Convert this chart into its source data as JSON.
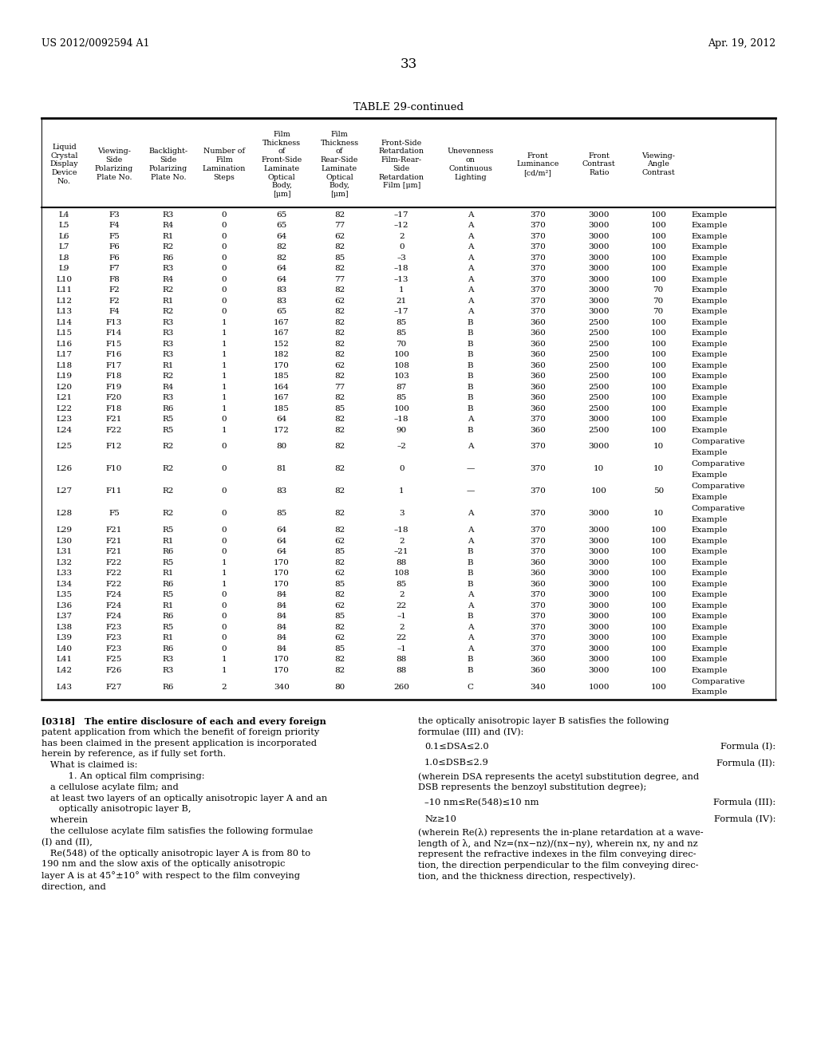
{
  "header_left": "US 2012/0092594 A1",
  "header_right": "Apr. 19, 2012",
  "page_number": "33",
  "table_title": "TABLE 29-continued",
  "rows": [
    [
      "L4",
      "F3",
      "R3",
      "0",
      "65",
      "82",
      "–17",
      "A",
      "370",
      "3000",
      "100",
      "Example"
    ],
    [
      "L5",
      "F4",
      "R4",
      "0",
      "65",
      "77",
      "–12",
      "A",
      "370",
      "3000",
      "100",
      "Example"
    ],
    [
      "L6",
      "F5",
      "R1",
      "0",
      "64",
      "62",
      "2",
      "A",
      "370",
      "3000",
      "100",
      "Example"
    ],
    [
      "L7",
      "F6",
      "R2",
      "0",
      "82",
      "82",
      "0",
      "A",
      "370",
      "3000",
      "100",
      "Example"
    ],
    [
      "L8",
      "F6",
      "R6",
      "0",
      "82",
      "85",
      "–3",
      "A",
      "370",
      "3000",
      "100",
      "Example"
    ],
    [
      "L9",
      "F7",
      "R3",
      "0",
      "64",
      "82",
      "–18",
      "A",
      "370",
      "3000",
      "100",
      "Example"
    ],
    [
      "L10",
      "F8",
      "R4",
      "0",
      "64",
      "77",
      "–13",
      "A",
      "370",
      "3000",
      "100",
      "Example"
    ],
    [
      "L11",
      "F2",
      "R2",
      "0",
      "83",
      "82",
      "1",
      "A",
      "370",
      "3000",
      "70",
      "Example"
    ],
    [
      "L12",
      "F2",
      "R1",
      "0",
      "83",
      "62",
      "21",
      "A",
      "370",
      "3000",
      "70",
      "Example"
    ],
    [
      "L13",
      "F4",
      "R2",
      "0",
      "65",
      "82",
      "–17",
      "A",
      "370",
      "3000",
      "70",
      "Example"
    ],
    [
      "L14",
      "F13",
      "R3",
      "1",
      "167",
      "82",
      "85",
      "B",
      "360",
      "2500",
      "100",
      "Example"
    ],
    [
      "L15",
      "F14",
      "R3",
      "1",
      "167",
      "82",
      "85",
      "B",
      "360",
      "2500",
      "100",
      "Example"
    ],
    [
      "L16",
      "F15",
      "R3",
      "1",
      "152",
      "82",
      "70",
      "B",
      "360",
      "2500",
      "100",
      "Example"
    ],
    [
      "L17",
      "F16",
      "R3",
      "1",
      "182",
      "82",
      "100",
      "B",
      "360",
      "2500",
      "100",
      "Example"
    ],
    [
      "L18",
      "F17",
      "R1",
      "1",
      "170",
      "62",
      "108",
      "B",
      "360",
      "2500",
      "100",
      "Example"
    ],
    [
      "L19",
      "F18",
      "R2",
      "1",
      "185",
      "82",
      "103",
      "B",
      "360",
      "2500",
      "100",
      "Example"
    ],
    [
      "L20",
      "F19",
      "R4",
      "1",
      "164",
      "77",
      "87",
      "B",
      "360",
      "2500",
      "100",
      "Example"
    ],
    [
      "L21",
      "F20",
      "R3",
      "1",
      "167",
      "82",
      "85",
      "B",
      "360",
      "2500",
      "100",
      "Example"
    ],
    [
      "L22",
      "F18",
      "R6",
      "1",
      "185",
      "85",
      "100",
      "B",
      "360",
      "2500",
      "100",
      "Example"
    ],
    [
      "L23",
      "F21",
      "R5",
      "0",
      "64",
      "82",
      "–18",
      "A",
      "370",
      "3000",
      "100",
      "Example"
    ],
    [
      "L24",
      "F22",
      "R5",
      "1",
      "172",
      "82",
      "90",
      "B",
      "360",
      "2500",
      "100",
      "Example"
    ],
    [
      "L25",
      "F12",
      "R2",
      "0",
      "80",
      "82",
      "–2",
      "A",
      "370",
      "3000",
      "10",
      "Comparative\nExample"
    ],
    [
      "L26",
      "F10",
      "R2",
      "0",
      "81",
      "82",
      "0",
      "—",
      "370",
      "10",
      "10",
      "Comparative\nExample"
    ],
    [
      "L27",
      "F11",
      "R2",
      "0",
      "83",
      "82",
      "1",
      "—",
      "370",
      "100",
      "50",
      "Comparative\nExample"
    ],
    [
      "L28",
      "F5",
      "R2",
      "0",
      "85",
      "82",
      "3",
      "A",
      "370",
      "3000",
      "10",
      "Comparative\nExample"
    ],
    [
      "L29",
      "F21",
      "R5",
      "0",
      "64",
      "82",
      "–18",
      "A",
      "370",
      "3000",
      "100",
      "Example"
    ],
    [
      "L30",
      "F21",
      "R1",
      "0",
      "64",
      "62",
      "2",
      "A",
      "370",
      "3000",
      "100",
      "Example"
    ],
    [
      "L31",
      "F21",
      "R6",
      "0",
      "64",
      "85",
      "–21",
      "B",
      "370",
      "3000",
      "100",
      "Example"
    ],
    [
      "L32",
      "F22",
      "R5",
      "1",
      "170",
      "82",
      "88",
      "B",
      "360",
      "3000",
      "100",
      "Example"
    ],
    [
      "L33",
      "F22",
      "R1",
      "1",
      "170",
      "62",
      "108",
      "B",
      "360",
      "3000",
      "100",
      "Example"
    ],
    [
      "L34",
      "F22",
      "R6",
      "1",
      "170",
      "85",
      "85",
      "B",
      "360",
      "3000",
      "100",
      "Example"
    ],
    [
      "L35",
      "F24",
      "R5",
      "0",
      "84",
      "82",
      "2",
      "A",
      "370",
      "3000",
      "100",
      "Example"
    ],
    [
      "L36",
      "F24",
      "R1",
      "0",
      "84",
      "62",
      "22",
      "A",
      "370",
      "3000",
      "100",
      "Example"
    ],
    [
      "L37",
      "F24",
      "R6",
      "0",
      "84",
      "85",
      "–1",
      "B",
      "370",
      "3000",
      "100",
      "Example"
    ],
    [
      "L38",
      "F23",
      "R5",
      "0",
      "84",
      "82",
      "2",
      "A",
      "370",
      "3000",
      "100",
      "Example"
    ],
    [
      "L39",
      "F23",
      "R1",
      "0",
      "84",
      "62",
      "22",
      "A",
      "370",
      "3000",
      "100",
      "Example"
    ],
    [
      "L40",
      "F23",
      "R6",
      "0",
      "84",
      "85",
      "–1",
      "A",
      "370",
      "3000",
      "100",
      "Example"
    ],
    [
      "L41",
      "F25",
      "R3",
      "1",
      "170",
      "82",
      "88",
      "B",
      "360",
      "3000",
      "100",
      "Example"
    ],
    [
      "L42",
      "F26",
      "R3",
      "1",
      "170",
      "82",
      "88",
      "B",
      "360",
      "3000",
      "100",
      "Example"
    ],
    [
      "L43",
      "F27",
      "R6",
      "2",
      "340",
      "80",
      "260",
      "C",
      "340",
      "1000",
      "100",
      "Comparative\nExample"
    ]
  ]
}
